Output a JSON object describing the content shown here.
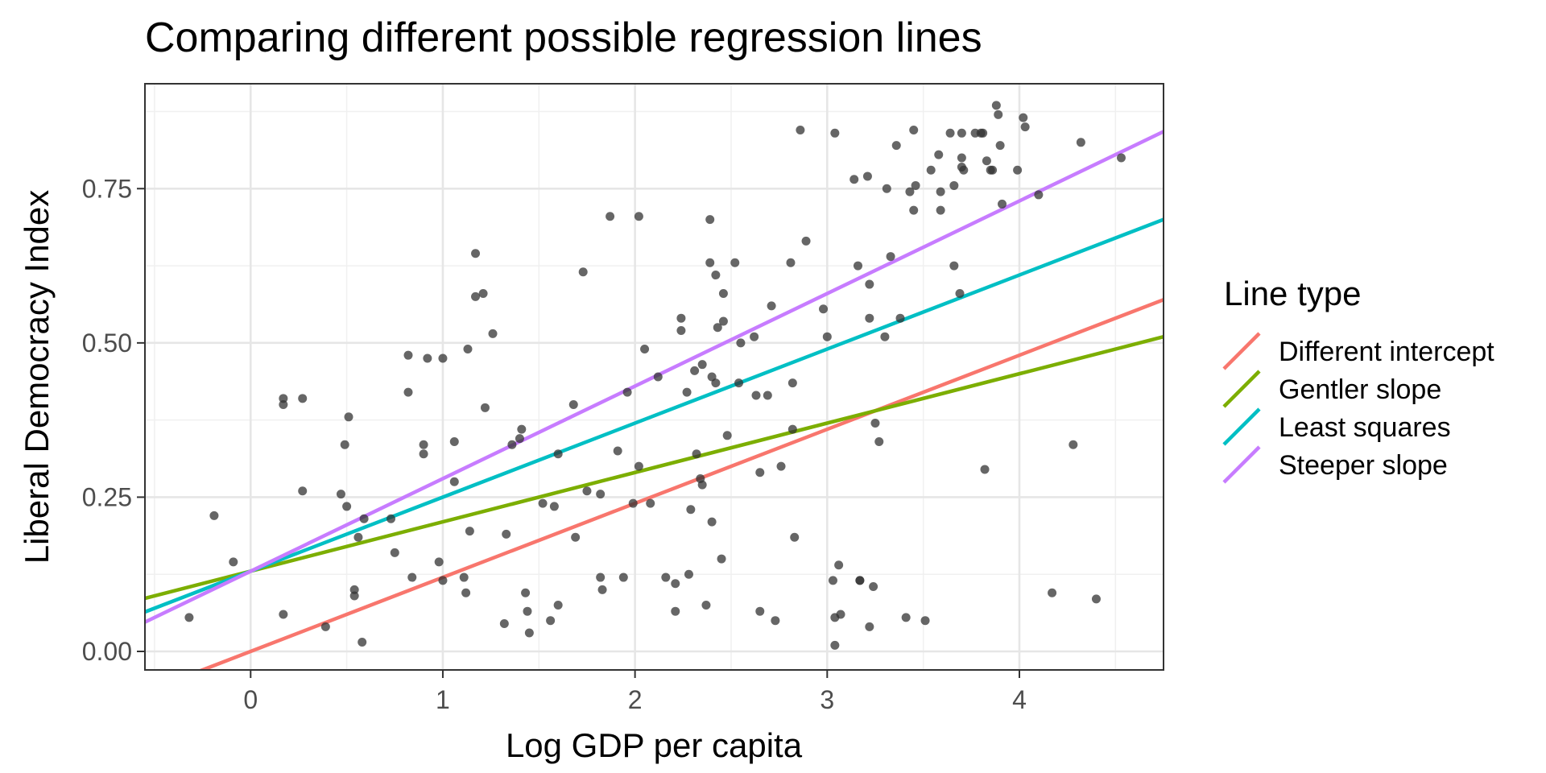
{
  "chart_data": {
    "type": "scatter",
    "title": "Comparing different possible regression lines",
    "xlabel": "Log GDP per capita",
    "ylabel": "Liberal Democracy Index",
    "xlim": [
      -0.55,
      4.75
    ],
    "ylim": [
      -0.03,
      0.92
    ],
    "x_ticks": [
      0,
      1,
      2,
      3,
      4
    ],
    "x_tick_labels": [
      "0",
      "1",
      "2",
      "3",
      "4"
    ],
    "y_ticks": [
      0,
      0.25,
      0.5,
      0.75
    ],
    "y_tick_labels": [
      "0.00",
      "0.25",
      "0.50",
      "0.75"
    ],
    "grid": true,
    "legend": {
      "title": "Line type",
      "placement": "right",
      "entries": [
        {
          "label": "Different intercept",
          "color": "#F8766D"
        },
        {
          "label": "Gentler slope",
          "color": "#7CAE00"
        },
        {
          "label": "Least squares",
          "color": "#00BFC4"
        },
        {
          "label": "Steeper slope",
          "color": "#C77CFF"
        }
      ]
    },
    "lines": [
      {
        "name": "Different intercept",
        "color": "#F8766D",
        "intercept": 0.0,
        "slope": 0.12
      },
      {
        "name": "Gentler slope",
        "color": "#7CAE00",
        "intercept": 0.13,
        "slope": 0.08
      },
      {
        "name": "Least squares",
        "color": "#00BFC4",
        "intercept": 0.13,
        "slope": 0.12
      },
      {
        "name": "Steeper slope",
        "color": "#C77CFF",
        "intercept": 0.13,
        "slope": 0.15
      }
    ],
    "point_color": "#333333",
    "points": [
      [
        -0.32,
        0.055
      ],
      [
        -0.19,
        0.22
      ],
      [
        -0.09,
        0.145
      ],
      [
        0.17,
        0.41
      ],
      [
        0.17,
        0.4
      ],
      [
        0.17,
        0.06
      ],
      [
        0.27,
        0.41
      ],
      [
        0.27,
        0.26
      ],
      [
        0.39,
        0.04
      ],
      [
        0.47,
        0.255
      ],
      [
        0.49,
        0.335
      ],
      [
        0.5,
        0.235
      ],
      [
        0.51,
        0.38
      ],
      [
        0.54,
        0.1
      ],
      [
        0.54,
        0.09
      ],
      [
        0.56,
        0.185
      ],
      [
        0.58,
        0.015
      ],
      [
        0.59,
        0.215
      ],
      [
        0.73,
        0.215
      ],
      [
        0.75,
        0.16
      ],
      [
        0.82,
        0.48
      ],
      [
        0.82,
        0.42
      ],
      [
        0.84,
        0.12
      ],
      [
        0.9,
        0.335
      ],
      [
        0.9,
        0.32
      ],
      [
        0.92,
        0.475
      ],
      [
        0.98,
        0.145
      ],
      [
        1.0,
        0.475
      ],
      [
        1.0,
        0.115
      ],
      [
        1.06,
        0.34
      ],
      [
        1.06,
        0.275
      ],
      [
        1.11,
        0.12
      ],
      [
        1.12,
        0.095
      ],
      [
        1.13,
        0.49
      ],
      [
        1.14,
        0.195
      ],
      [
        1.17,
        0.645
      ],
      [
        1.17,
        0.575
      ],
      [
        1.21,
        0.58
      ],
      [
        1.22,
        0.395
      ],
      [
        1.26,
        0.515
      ],
      [
        1.32,
        0.045
      ],
      [
        1.33,
        0.19
      ],
      [
        1.36,
        0.335
      ],
      [
        1.4,
        0.345
      ],
      [
        1.41,
        0.36
      ],
      [
        1.43,
        0.095
      ],
      [
        1.44,
        0.065
      ],
      [
        1.45,
        0.03
      ],
      [
        1.52,
        0.24
      ],
      [
        1.56,
        0.05
      ],
      [
        1.58,
        0.235
      ],
      [
        1.6,
        0.32
      ],
      [
        1.6,
        0.075
      ],
      [
        1.68,
        0.4
      ],
      [
        1.69,
        0.185
      ],
      [
        1.73,
        0.615
      ],
      [
        1.75,
        0.26
      ],
      [
        1.82,
        0.255
      ],
      [
        1.82,
        0.12
      ],
      [
        1.83,
        0.1
      ],
      [
        1.87,
        0.705
      ],
      [
        1.91,
        0.325
      ],
      [
        1.94,
        0.12
      ],
      [
        1.96,
        0.42
      ],
      [
        1.99,
        0.24
      ],
      [
        2.02,
        0.705
      ],
      [
        2.02,
        0.3
      ],
      [
        2.05,
        0.49
      ],
      [
        2.08,
        0.24
      ],
      [
        2.12,
        0.445
      ],
      [
        2.16,
        0.12
      ],
      [
        2.21,
        0.11
      ],
      [
        2.21,
        0.065
      ],
      [
        2.24,
        0.54
      ],
      [
        2.24,
        0.52
      ],
      [
        2.27,
        0.42
      ],
      [
        2.28,
        0.125
      ],
      [
        2.29,
        0.23
      ],
      [
        2.31,
        0.455
      ],
      [
        2.32,
        0.32
      ],
      [
        2.34,
        0.28
      ],
      [
        2.35,
        0.465
      ],
      [
        2.35,
        0.27
      ],
      [
        2.37,
        0.075
      ],
      [
        2.39,
        0.63
      ],
      [
        2.39,
        0.7
      ],
      [
        2.4,
        0.445
      ],
      [
        2.4,
        0.21
      ],
      [
        2.42,
        0.61
      ],
      [
        2.42,
        0.435
      ],
      [
        2.43,
        0.525
      ],
      [
        2.45,
        0.15
      ],
      [
        2.46,
        0.58
      ],
      [
        2.46,
        0.535
      ],
      [
        2.48,
        0.35
      ],
      [
        2.52,
        0.63
      ],
      [
        2.54,
        0.435
      ],
      [
        2.55,
        0.5
      ],
      [
        2.62,
        0.51
      ],
      [
        2.63,
        0.415
      ],
      [
        2.65,
        0.29
      ],
      [
        2.65,
        0.065
      ],
      [
        2.69,
        0.415
      ],
      [
        2.71,
        0.56
      ],
      [
        2.73,
        0.05
      ],
      [
        2.76,
        0.3
      ],
      [
        2.81,
        0.63
      ],
      [
        2.82,
        0.36
      ],
      [
        2.82,
        0.435
      ],
      [
        2.83,
        0.185
      ],
      [
        2.86,
        0.845
      ],
      [
        2.89,
        0.665
      ],
      [
        2.98,
        0.555
      ],
      [
        3.0,
        0.51
      ],
      [
        3.03,
        0.115
      ],
      [
        3.04,
        0.84
      ],
      [
        3.04,
        0.055
      ],
      [
        3.04,
        0.01
      ],
      [
        3.06,
        0.14
      ],
      [
        3.07,
        0.06
      ],
      [
        3.14,
        0.765
      ],
      [
        3.16,
        0.625
      ],
      [
        3.17,
        0.115
      ],
      [
        3.17,
        0.115
      ],
      [
        3.21,
        0.77
      ],
      [
        3.22,
        0.595
      ],
      [
        3.22,
        0.54
      ],
      [
        3.22,
        0.04
      ],
      [
        3.24,
        0.105
      ],
      [
        3.25,
        0.37
      ],
      [
        3.27,
        0.34
      ],
      [
        3.3,
        0.51
      ],
      [
        3.31,
        0.75
      ],
      [
        3.33,
        0.64
      ],
      [
        3.36,
        0.82
      ],
      [
        3.38,
        0.54
      ],
      [
        3.41,
        0.055
      ],
      [
        3.43,
        0.745
      ],
      [
        3.45,
        0.845
      ],
      [
        3.45,
        0.715
      ],
      [
        3.46,
        0.755
      ],
      [
        3.51,
        0.05
      ],
      [
        3.54,
        0.78
      ],
      [
        3.58,
        0.805
      ],
      [
        3.59,
        0.745
      ],
      [
        3.59,
        0.715
      ],
      [
        3.64,
        0.84
      ],
      [
        3.66,
        0.755
      ],
      [
        3.66,
        0.625
      ],
      [
        3.69,
        0.58
      ],
      [
        3.7,
        0.84
      ],
      [
        3.7,
        0.8
      ],
      [
        3.7,
        0.785
      ],
      [
        3.71,
        0.78
      ],
      [
        3.77,
        0.84
      ],
      [
        3.8,
        0.84
      ],
      [
        3.81,
        0.84
      ],
      [
        3.82,
        0.295
      ],
      [
        3.83,
        0.795
      ],
      [
        3.85,
        0.78
      ],
      [
        3.86,
        0.78
      ],
      [
        3.88,
        0.885
      ],
      [
        3.89,
        0.87
      ],
      [
        3.9,
        0.82
      ],
      [
        3.91,
        0.725
      ],
      [
        3.99,
        0.78
      ],
      [
        4.02,
        0.865
      ],
      [
        4.03,
        0.85
      ],
      [
        4.1,
        0.74
      ],
      [
        4.17,
        0.095
      ],
      [
        4.28,
        0.335
      ],
      [
        4.32,
        0.825
      ],
      [
        4.4,
        0.085
      ],
      [
        4.53,
        0.8
      ]
    ]
  }
}
